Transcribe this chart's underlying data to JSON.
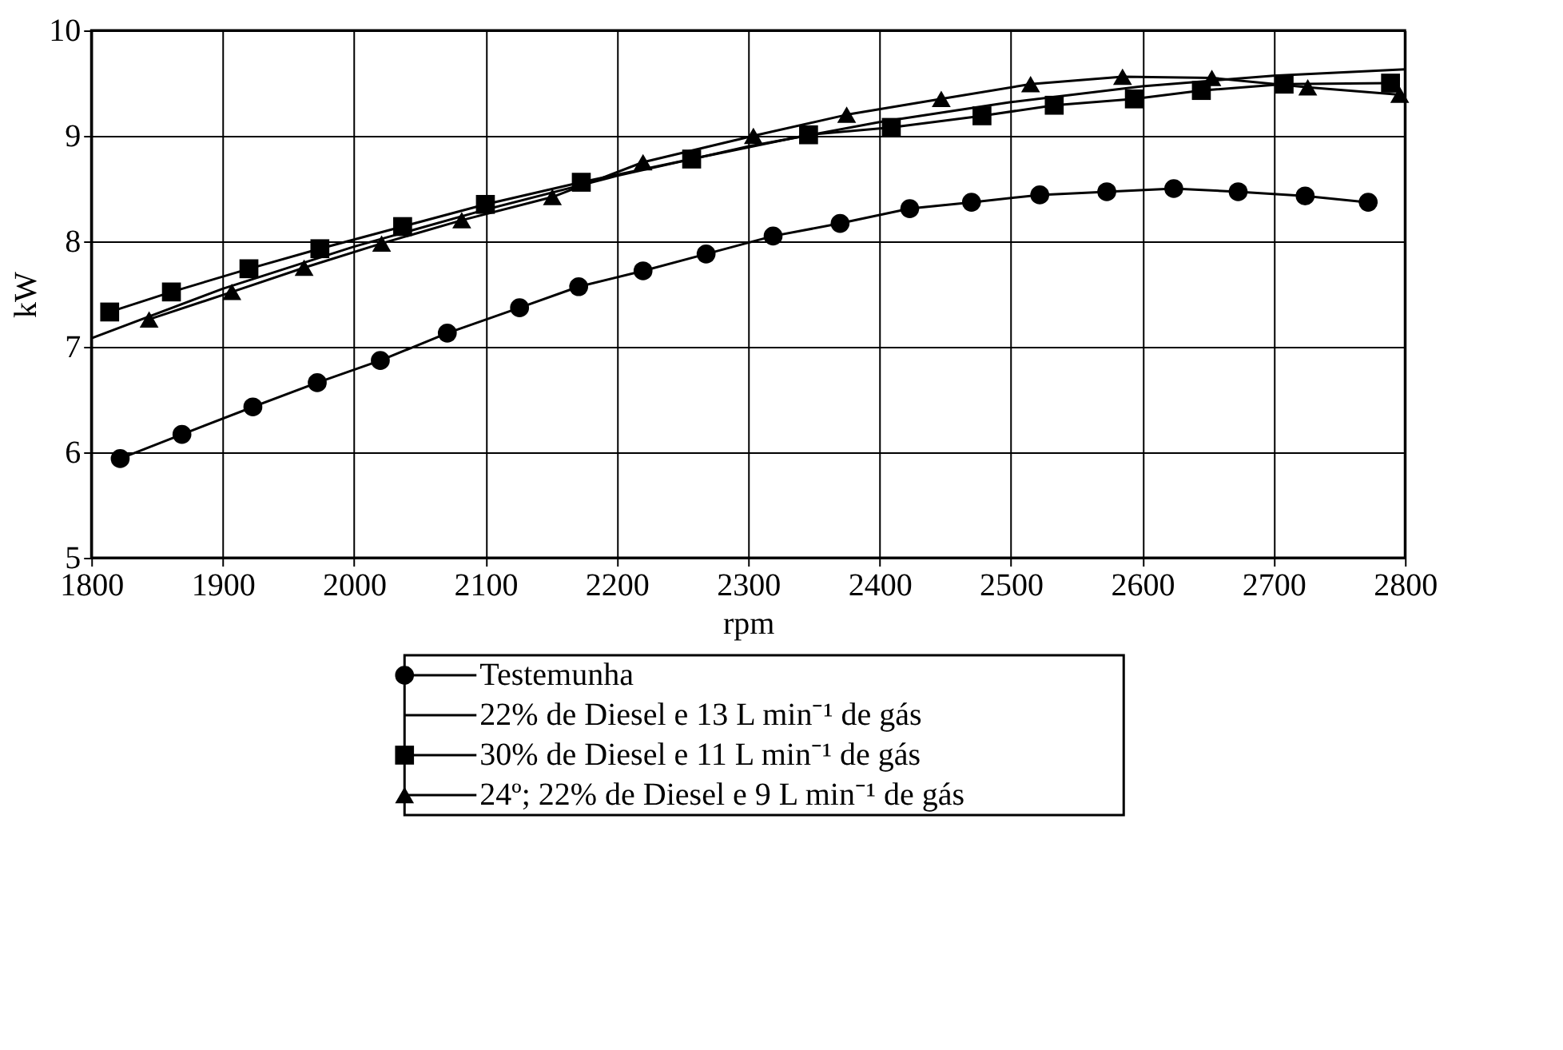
{
  "chart_data": {
    "type": "line",
    "xlabel": "rpm",
    "ylabel": "kW",
    "xlim": [
      1800,
      2800
    ],
    "xticks": [
      1800,
      1900,
      2000,
      2100,
      2200,
      2300,
      2400,
      2500,
      2600,
      2700,
      2800
    ],
    "ylim": [
      5,
      10
    ],
    "yticks": [
      5,
      6,
      7,
      8,
      9,
      10
    ],
    "grid": true,
    "legend": "bottom",
    "line_style": "solid",
    "series": [
      {
        "name": "Testemunha",
        "color": "#000000",
        "marker": "circle",
        "x": [
          1822,
          1869,
          1923,
          1972,
          2020,
          2071,
          2126,
          2171,
          2220,
          2268,
          2319,
          2370,
          2423,
          2470,
          2522,
          2573,
          2624,
          2673,
          2724,
          2772
        ],
        "values": [
          5.94,
          6.17,
          6.43,
          6.66,
          6.87,
          7.13,
          7.37,
          7.57,
          7.72,
          7.88,
          8.05,
          8.17,
          8.31,
          8.37,
          8.44,
          8.47,
          8.5,
          8.47,
          8.43,
          8.37
        ]
      },
      {
        "name": "22% de Diesel e 13 L min⁻¹ de gás",
        "color": "#000000",
        "marker": "none",
        "x": [
          1800,
          1900,
          2000,
          2100,
          2200,
          2300,
          2400,
          2500,
          2600,
          2700,
          2800
        ],
        "values": [
          7.08,
          7.55,
          7.95,
          8.3,
          8.62,
          8.9,
          9.13,
          9.32,
          9.47,
          9.57,
          9.63
        ]
      },
      {
        "name": "30% de Diesel e 11 L min⁻¹ de gás",
        "color": "#000000",
        "marker": "square",
        "x": [
          1814,
          1861,
          1920,
          1974,
          2037,
          2100,
          2173,
          2257,
          2346,
          2409,
          2478,
          2533,
          2594,
          2645,
          2708,
          2789
        ],
        "values": [
          7.33,
          7.52,
          7.74,
          7.93,
          8.14,
          8.35,
          8.56,
          8.78,
          9.01,
          9.08,
          9.19,
          9.29,
          9.35,
          9.43,
          9.49,
          9.5
        ]
      },
      {
        "name": "24º; 22% de Diesel e 9 L min⁻¹ de gás",
        "color": "#000000",
        "marker": "triangle",
        "x": [
          1844,
          1907,
          1962,
          2021,
          2082,
          2151,
          2220,
          2304,
          2375,
          2447,
          2515,
          2585,
          2653,
          2726,
          2796
        ],
        "values": [
          7.26,
          7.52,
          7.75,
          7.98,
          8.2,
          8.42,
          8.75,
          9.0,
          9.2,
          9.35,
          9.49,
          9.56,
          9.55,
          9.46,
          9.39
        ]
      }
    ]
  }
}
